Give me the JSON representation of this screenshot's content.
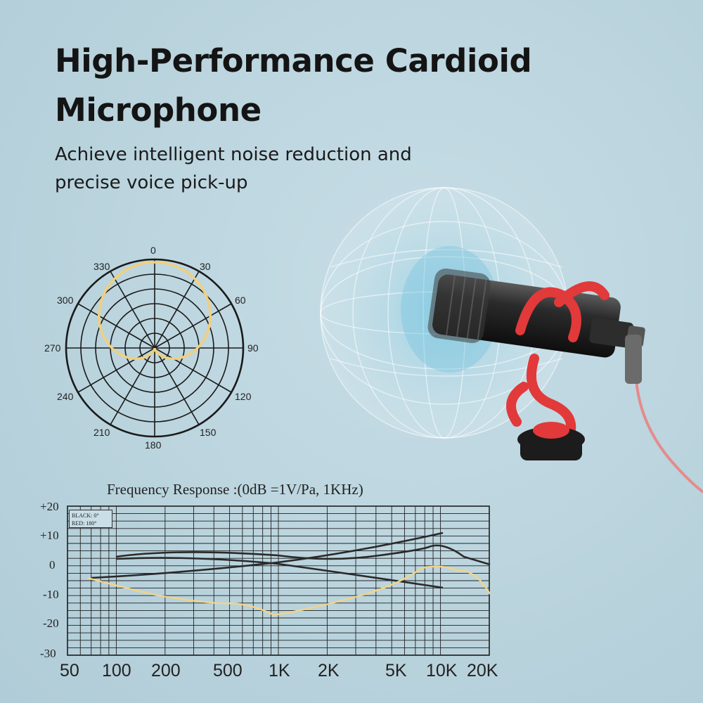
{
  "hero": {
    "title": "High-Performance Cardioid Microphone",
    "subtitle": "Achieve intelligent noise reduction and precise voice pick-up"
  },
  "polar": {
    "labels": [
      "0",
      "30",
      "60",
      "90",
      "120",
      "150",
      "180",
      "210",
      "240",
      "270",
      "300",
      "330"
    ]
  },
  "frequency": {
    "title": "Frequency  Response :(0dB =1V/Pa, 1KHz)",
    "legend": [
      "BLACK: 0°",
      "RED: 180°"
    ],
    "y_labels": [
      "+20",
      "+10",
      "0",
      "-10",
      "-20",
      "-30"
    ],
    "x_labels": [
      "50",
      "100",
      "200",
      "500",
      "1K",
      "2K",
      "5K",
      "10K",
      "20K"
    ]
  },
  "colors": {
    "accent_yellow": "#f1cf7c",
    "mic_red": "#e2393a",
    "ink": "#141414"
  }
}
